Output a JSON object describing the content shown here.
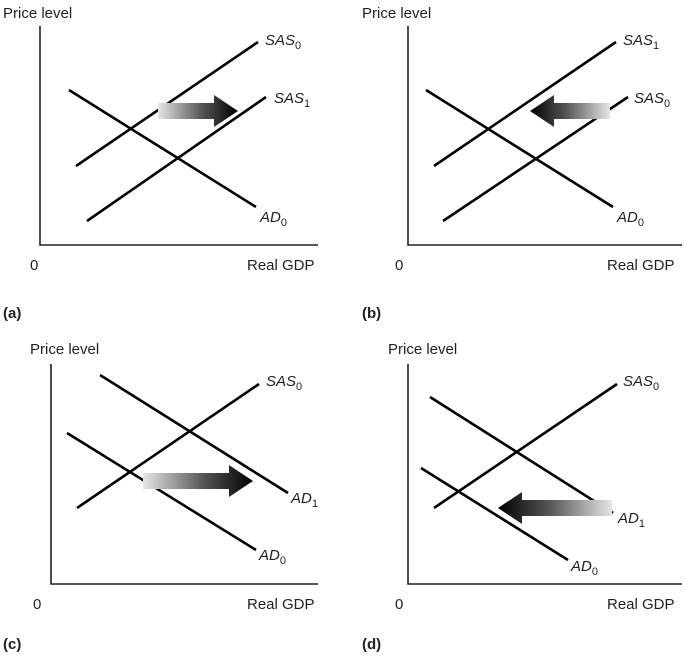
{
  "axes": {
    "y_label": "Price level",
    "x_label": "Real GDP",
    "origin_label": "0"
  },
  "colors": {
    "ink": "#000000",
    "arrow_light": "#d9d9d9",
    "arrow_dark": "#000000"
  },
  "panels": [
    {
      "label": "(a)",
      "curves": [
        {
          "base": "SAS",
          "sub": "0"
        },
        {
          "base": "SAS",
          "sub": "1"
        },
        {
          "base": "AD",
          "sub": "0"
        }
      ],
      "arrow_direction": "right"
    },
    {
      "label": "(b)",
      "curves": [
        {
          "base": "SAS",
          "sub": "1"
        },
        {
          "base": "SAS",
          "sub": "0"
        },
        {
          "base": "AD",
          "sub": "0"
        }
      ],
      "arrow_direction": "left"
    },
    {
      "label": "(c)",
      "curves": [
        {
          "base": "SAS",
          "sub": "0"
        },
        {
          "base": "AD",
          "sub": "1"
        },
        {
          "base": "AD",
          "sub": "0"
        }
      ],
      "arrow_direction": "right"
    },
    {
      "label": "(d)",
      "curves": [
        {
          "base": "SAS",
          "sub": "0"
        },
        {
          "base": "AD",
          "sub": "1"
        },
        {
          "base": "AD",
          "sub": "0"
        }
      ],
      "arrow_direction": "left"
    }
  ]
}
